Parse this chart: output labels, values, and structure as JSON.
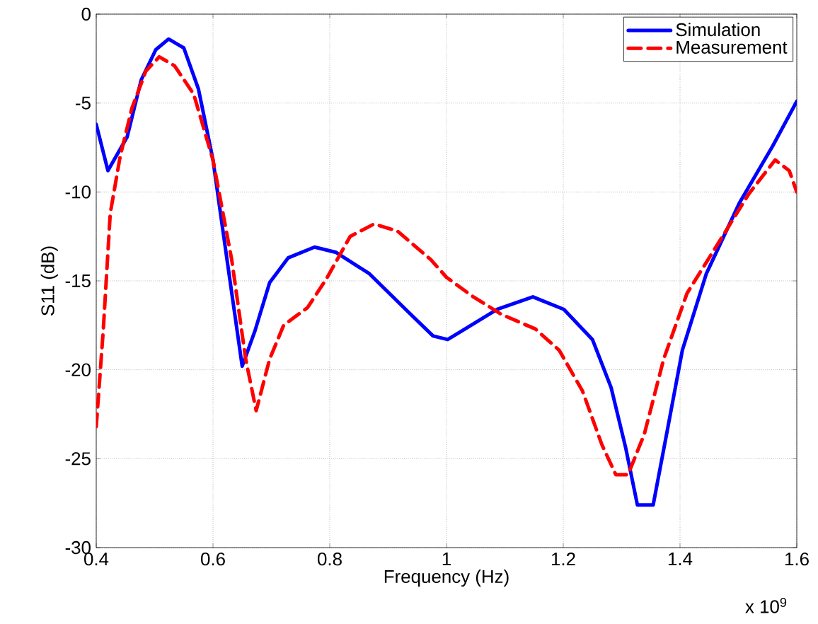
{
  "chart_data": {
    "type": "line",
    "xlabel": "Frequency (Hz)",
    "ylabel": "S11 (dB)",
    "xlim": [
      0.4,
      1.6
    ],
    "ylim": [
      -30,
      0
    ],
    "xticks": [
      0.4,
      0.6,
      0.8,
      1,
      1.2,
      1.4,
      1.6
    ],
    "yticks": [
      -30,
      -25,
      -20,
      -15,
      -10,
      -5,
      0
    ],
    "grid": true,
    "legend": "top right",
    "marker": "none",
    "annotations": [
      "x 10$^{9}$"
    ],
    "series": [
      {
        "name": "Simulation",
        "color": "#0000ff",
        "line_style": "solid",
        "x": [
          0.4,
          0.42,
          0.453,
          0.477,
          0.502,
          0.524,
          0.55,
          0.575,
          0.6,
          0.624,
          0.65,
          0.672,
          0.697,
          0.729,
          0.774,
          0.811,
          0.868,
          0.933,
          0.977,
          1.002,
          1.022,
          1.087,
          1.148,
          1.201,
          1.25,
          1.282,
          1.307,
          1.327,
          1.354,
          1.38,
          1.404,
          1.445,
          1.502,
          1.559,
          1.6
        ],
        "values": [
          -6.2,
          -8.8,
          -6.9,
          -3.7,
          -2.0,
          -1.4,
          -1.9,
          -4.2,
          -8.2,
          -13.8,
          -19.8,
          -17.8,
          -15.1,
          -13.7,
          -13.1,
          -13.4,
          -14.6,
          -16.7,
          -18.1,
          -18.3,
          -17.9,
          -16.6,
          -15.9,
          -16.6,
          -18.3,
          -21.0,
          -24.4,
          -27.6,
          -27.6,
          -23.1,
          -18.9,
          -14.6,
          -10.6,
          -7.4,
          -4.9
        ]
      },
      {
        "name": "Measurement",
        "color": "#ff0000",
        "line_style": "dashed",
        "x": [
          0.4,
          0.412,
          0.424,
          0.441,
          0.461,
          0.485,
          0.508,
          0.534,
          0.567,
          0.6,
          0.632,
          0.656,
          0.674,
          0.697,
          0.721,
          0.762,
          0.794,
          0.835,
          0.876,
          0.916,
          0.973,
          1.0,
          1.046,
          1.095,
          1.152,
          1.193,
          1.233,
          1.266,
          1.29,
          1.311,
          1.339,
          1.372,
          1.412,
          1.469,
          1.518,
          1.563,
          1.587,
          1.6
        ],
        "values": [
          -23.2,
          -17.8,
          -11.2,
          -8.0,
          -5.3,
          -3.2,
          -2.4,
          -2.9,
          -4.5,
          -8.2,
          -13.8,
          -19.4,
          -22.3,
          -19.4,
          -17.5,
          -16.5,
          -14.9,
          -12.5,
          -11.8,
          -12.2,
          -13.8,
          -14.8,
          -15.9,
          -16.9,
          -17.7,
          -18.9,
          -21.2,
          -24.2,
          -25.9,
          -25.9,
          -23.6,
          -19.4,
          -15.7,
          -12.7,
          -10.1,
          -8.2,
          -8.8,
          -10.0
        ]
      }
    ]
  }
}
